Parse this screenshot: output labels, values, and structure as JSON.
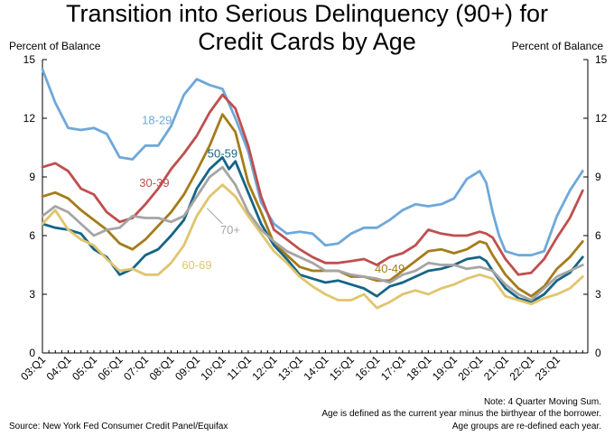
{
  "title_line1": "Transition into Serious Delinquency (90+) for",
  "title_line2": "Credit Cards by Age",
  "y_unit_left": "Percent of Balance",
  "y_unit_right": "Percent of Balance",
  "source": "Source: New York Fed Consumer Credit Panel/Equifax",
  "notes": [
    "Note: 4 Quarter Moving Sum.",
    "Age is defined as the current year minus the birthyear of the borrower.",
    "Age groups are re-defined each year."
  ],
  "chart_data": {
    "type": "line",
    "title": "Transition into Serious Delinquency (90+) for Credit Cards by Age",
    "ylabel": "Percent of Balance",
    "ylim": [
      0,
      15
    ],
    "yticks": [
      0,
      3,
      6,
      9,
      12,
      15
    ],
    "grid": false,
    "xlim": [
      2003.0,
      2024.2
    ],
    "xtick_labels": [
      "03:Q1",
      "04:Q1",
      "05:Q1",
      "06:Q1",
      "07:Q1",
      "08:Q1",
      "09:Q1",
      "10:Q1",
      "11:Q1",
      "12:Q1",
      "13:Q1",
      "14:Q1",
      "15:Q1",
      "16:Q1",
      "17:Q1",
      "18:Q1",
      "19:Q1",
      "20:Q1",
      "21:Q1",
      "22:Q1",
      "23:Q1"
    ],
    "series": [
      {
        "name": "18-29",
        "color": "#6ea8da",
        "points": [
          [
            2003.0,
            14.5
          ],
          [
            2003.5,
            12.8
          ],
          [
            2004.0,
            11.5
          ],
          [
            2004.5,
            11.4
          ],
          [
            2005.0,
            11.5
          ],
          [
            2005.5,
            11.2
          ],
          [
            2006.0,
            10.0
          ],
          [
            2006.5,
            9.9
          ],
          [
            2007.0,
            10.6
          ],
          [
            2007.5,
            10.6
          ],
          [
            2008.0,
            11.6
          ],
          [
            2008.5,
            13.2
          ],
          [
            2009.0,
            14.0
          ],
          [
            2009.5,
            13.7
          ],
          [
            2010.0,
            13.5
          ],
          [
            2010.5,
            12.0
          ],
          [
            2011.0,
            10.3
          ],
          [
            2011.25,
            9.0
          ],
          [
            2011.5,
            7.7
          ],
          [
            2012.0,
            6.6
          ],
          [
            2012.5,
            6.1
          ],
          [
            2013.0,
            6.2
          ],
          [
            2013.5,
            6.1
          ],
          [
            2014.0,
            5.5
          ],
          [
            2014.5,
            5.6
          ],
          [
            2015.0,
            6.1
          ],
          [
            2015.5,
            6.4
          ],
          [
            2016.0,
            6.4
          ],
          [
            2016.5,
            6.8
          ],
          [
            2017.0,
            7.3
          ],
          [
            2017.5,
            7.6
          ],
          [
            2018.0,
            7.5
          ],
          [
            2018.5,
            7.6
          ],
          [
            2019.0,
            7.9
          ],
          [
            2019.5,
            8.9
          ],
          [
            2020.0,
            9.3
          ],
          [
            2020.25,
            8.7
          ],
          [
            2020.5,
            7.2
          ],
          [
            2020.75,
            6.0
          ],
          [
            2021.0,
            5.2
          ],
          [
            2021.5,
            5.0
          ],
          [
            2022.0,
            5.0
          ],
          [
            2022.5,
            5.2
          ],
          [
            2023.0,
            7.0
          ],
          [
            2023.5,
            8.3
          ],
          [
            2024.0,
            9.3
          ]
        ]
      },
      {
        "name": "30-39",
        "color": "#bf4f4f",
        "points": [
          [
            2003.0,
            9.5
          ],
          [
            2003.5,
            9.7
          ],
          [
            2004.0,
            9.3
          ],
          [
            2004.5,
            8.4
          ],
          [
            2005.0,
            8.1
          ],
          [
            2005.5,
            7.2
          ],
          [
            2006.0,
            6.7
          ],
          [
            2006.5,
            6.9
          ],
          [
            2007.0,
            7.6
          ],
          [
            2007.5,
            8.4
          ],
          [
            2008.0,
            9.4
          ],
          [
            2008.5,
            10.2
          ],
          [
            2009.0,
            11.1
          ],
          [
            2009.5,
            12.3
          ],
          [
            2010.0,
            13.2
          ],
          [
            2010.5,
            12.5
          ],
          [
            2011.0,
            10.6
          ],
          [
            2011.25,
            9.3
          ],
          [
            2011.5,
            8.0
          ],
          [
            2012.0,
            6.3
          ],
          [
            2012.5,
            5.8
          ],
          [
            2013.0,
            5.3
          ],
          [
            2013.5,
            4.9
          ],
          [
            2014.0,
            4.6
          ],
          [
            2014.5,
            4.6
          ],
          [
            2015.0,
            4.7
          ],
          [
            2015.5,
            4.8
          ],
          [
            2016.0,
            4.5
          ],
          [
            2016.5,
            4.9
          ],
          [
            2017.0,
            5.1
          ],
          [
            2017.5,
            5.5
          ],
          [
            2018.0,
            6.3
          ],
          [
            2018.5,
            6.1
          ],
          [
            2019.0,
            6.0
          ],
          [
            2019.5,
            6.0
          ],
          [
            2020.0,
            6.2
          ],
          [
            2020.25,
            6.1
          ],
          [
            2020.5,
            5.9
          ],
          [
            2021.0,
            4.8
          ],
          [
            2021.5,
            4.0
          ],
          [
            2022.0,
            4.1
          ],
          [
            2022.5,
            4.8
          ],
          [
            2023.0,
            5.9
          ],
          [
            2023.5,
            6.9
          ],
          [
            2024.0,
            8.3
          ]
        ]
      },
      {
        "name": "40-49",
        "color": "#a57c1b",
        "points": [
          [
            2003.0,
            8.0
          ],
          [
            2003.5,
            8.2
          ],
          [
            2004.0,
            7.9
          ],
          [
            2004.5,
            7.3
          ],
          [
            2005.0,
            6.8
          ],
          [
            2005.5,
            6.3
          ],
          [
            2006.0,
            5.6
          ],
          [
            2006.5,
            5.3
          ],
          [
            2007.0,
            5.8
          ],
          [
            2007.5,
            6.5
          ],
          [
            2008.0,
            7.2
          ],
          [
            2008.5,
            8.1
          ],
          [
            2009.0,
            9.3
          ],
          [
            2009.5,
            10.6
          ],
          [
            2010.0,
            12.2
          ],
          [
            2010.5,
            11.3
          ],
          [
            2011.0,
            8.7
          ],
          [
            2011.5,
            7.2
          ],
          [
            2012.0,
            5.6
          ],
          [
            2012.5,
            5.0
          ],
          [
            2013.0,
            4.4
          ],
          [
            2013.5,
            4.2
          ],
          [
            2014.0,
            4.2
          ],
          [
            2014.5,
            4.2
          ],
          [
            2015.0,
            3.9
          ],
          [
            2015.5,
            3.9
          ],
          [
            2016.0,
            3.7
          ],
          [
            2016.5,
            3.7
          ],
          [
            2017.0,
            4.2
          ],
          [
            2017.5,
            4.7
          ],
          [
            2018.0,
            5.2
          ],
          [
            2018.5,
            5.3
          ],
          [
            2019.0,
            5.1
          ],
          [
            2019.5,
            5.3
          ],
          [
            2020.0,
            5.7
          ],
          [
            2020.25,
            5.6
          ],
          [
            2020.5,
            5.0
          ],
          [
            2021.0,
            4.0
          ],
          [
            2021.5,
            3.3
          ],
          [
            2022.0,
            2.9
          ],
          [
            2022.5,
            3.4
          ],
          [
            2023.0,
            4.3
          ],
          [
            2023.5,
            4.9
          ],
          [
            2024.0,
            5.7
          ]
        ]
      },
      {
        "name": "50-59",
        "color": "#156585",
        "points": [
          [
            2003.0,
            6.6
          ],
          [
            2003.5,
            6.4
          ],
          [
            2004.0,
            6.3
          ],
          [
            2004.5,
            6.1
          ],
          [
            2005.0,
            5.3
          ],
          [
            2005.5,
            4.9
          ],
          [
            2006.0,
            4.0
          ],
          [
            2006.5,
            4.3
          ],
          [
            2007.0,
            5.0
          ],
          [
            2007.5,
            5.3
          ],
          [
            2008.0,
            6.0
          ],
          [
            2008.5,
            6.8
          ],
          [
            2009.0,
            8.4
          ],
          [
            2009.5,
            9.4
          ],
          [
            2010.0,
            10.0
          ],
          [
            2010.25,
            9.4
          ],
          [
            2010.5,
            9.8
          ],
          [
            2011.0,
            8.2
          ],
          [
            2011.5,
            6.6
          ],
          [
            2012.0,
            5.5
          ],
          [
            2012.5,
            4.8
          ],
          [
            2013.0,
            4.0
          ],
          [
            2013.5,
            3.8
          ],
          [
            2014.0,
            3.6
          ],
          [
            2014.5,
            3.7
          ],
          [
            2015.0,
            3.5
          ],
          [
            2015.5,
            3.3
          ],
          [
            2016.0,
            2.9
          ],
          [
            2016.5,
            3.4
          ],
          [
            2017.0,
            3.6
          ],
          [
            2017.5,
            3.9
          ],
          [
            2018.0,
            4.2
          ],
          [
            2018.5,
            4.3
          ],
          [
            2019.0,
            4.5
          ],
          [
            2019.5,
            4.8
          ],
          [
            2020.0,
            4.9
          ],
          [
            2020.25,
            4.7
          ],
          [
            2020.5,
            4.2
          ],
          [
            2021.0,
            3.3
          ],
          [
            2021.5,
            2.8
          ],
          [
            2022.0,
            2.6
          ],
          [
            2022.5,
            3.0
          ],
          [
            2023.0,
            3.7
          ],
          [
            2023.5,
            4.1
          ],
          [
            2024.0,
            4.9
          ]
        ]
      },
      {
        "name": "60-69",
        "color": "#e0c56e",
        "points": [
          [
            2003.0,
            6.6
          ],
          [
            2003.5,
            7.3
          ],
          [
            2004.0,
            6.3
          ],
          [
            2004.5,
            5.8
          ],
          [
            2005.0,
            5.5
          ],
          [
            2005.5,
            4.8
          ],
          [
            2006.0,
            4.2
          ],
          [
            2006.5,
            4.3
          ],
          [
            2007.0,
            4.0
          ],
          [
            2007.5,
            4.0
          ],
          [
            2008.0,
            4.6
          ],
          [
            2008.5,
            5.5
          ],
          [
            2009.0,
            7.0
          ],
          [
            2009.5,
            8.0
          ],
          [
            2010.0,
            8.6
          ],
          [
            2010.5,
            8.0
          ],
          [
            2011.0,
            7.0
          ],
          [
            2011.5,
            6.1
          ],
          [
            2012.0,
            5.2
          ],
          [
            2012.5,
            4.6
          ],
          [
            2013.0,
            3.9
          ],
          [
            2013.5,
            3.4
          ],
          [
            2014.0,
            3.0
          ],
          [
            2014.5,
            2.7
          ],
          [
            2015.0,
            2.7
          ],
          [
            2015.5,
            3.0
          ],
          [
            2016.0,
            2.3
          ],
          [
            2016.5,
            2.6
          ],
          [
            2017.0,
            3.0
          ],
          [
            2017.5,
            3.2
          ],
          [
            2018.0,
            3.0
          ],
          [
            2018.5,
            3.3
          ],
          [
            2019.0,
            3.5
          ],
          [
            2019.5,
            3.8
          ],
          [
            2020.0,
            4.0
          ],
          [
            2020.5,
            3.8
          ],
          [
            2021.0,
            2.9
          ],
          [
            2021.5,
            2.7
          ],
          [
            2022.0,
            2.5
          ],
          [
            2022.5,
            2.8
          ],
          [
            2023.0,
            3.0
          ],
          [
            2023.5,
            3.3
          ],
          [
            2024.0,
            3.9
          ]
        ]
      },
      {
        "name": "70+",
        "color": "#a5a5a5",
        "points": [
          [
            2003.0,
            7.0
          ],
          [
            2003.5,
            7.5
          ],
          [
            2004.0,
            7.2
          ],
          [
            2004.5,
            6.6
          ],
          [
            2005.0,
            6.0
          ],
          [
            2005.5,
            6.3
          ],
          [
            2006.0,
            6.4
          ],
          [
            2006.5,
            7.0
          ],
          [
            2007.0,
            6.9
          ],
          [
            2007.5,
            6.9
          ],
          [
            2008.0,
            6.7
          ],
          [
            2008.5,
            7.0
          ],
          [
            2009.0,
            8.0
          ],
          [
            2009.5,
            9.0
          ],
          [
            2010.0,
            9.5
          ],
          [
            2010.5,
            8.6
          ],
          [
            2011.0,
            7.2
          ],
          [
            2011.5,
            6.3
          ],
          [
            2012.0,
            5.7
          ],
          [
            2012.5,
            5.2
          ],
          [
            2013.0,
            4.9
          ],
          [
            2013.5,
            4.6
          ],
          [
            2014.0,
            4.2
          ],
          [
            2014.5,
            4.2
          ],
          [
            2015.0,
            4.0
          ],
          [
            2015.5,
            3.9
          ],
          [
            2016.0,
            3.8
          ],
          [
            2016.5,
            3.6
          ],
          [
            2017.0,
            4.0
          ],
          [
            2017.5,
            4.2
          ],
          [
            2018.0,
            4.6
          ],
          [
            2018.5,
            4.5
          ],
          [
            2019.0,
            4.5
          ],
          [
            2019.5,
            4.3
          ],
          [
            2020.0,
            4.4
          ],
          [
            2020.5,
            4.2
          ],
          [
            2021.0,
            3.5
          ],
          [
            2021.5,
            3.0
          ],
          [
            2022.0,
            2.7
          ],
          [
            2022.5,
            3.3
          ],
          [
            2023.0,
            3.9
          ],
          [
            2023.5,
            4.2
          ],
          [
            2024.0,
            4.5
          ]
        ]
      }
    ],
    "annotations": [
      {
        "text": "18-29",
        "color": "#6ea8da"
      },
      {
        "text": "30-39",
        "color": "#bf4f4f"
      },
      {
        "text": "50-59",
        "color": "#156585"
      },
      {
        "text": "70+",
        "color": "#a5a5a5"
      },
      {
        "text": "60-69",
        "color": "#e0c56e"
      },
      {
        "text": "40-49",
        "color": "#a57c1b"
      }
    ]
  }
}
